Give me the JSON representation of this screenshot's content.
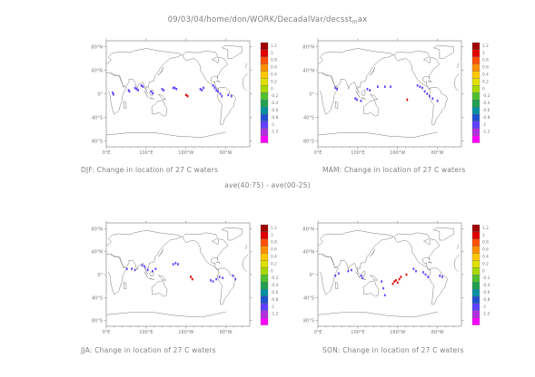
{
  "header": {
    "path": "09/03/04/home/don/WORK/DecadalVar/decsst",
    "path_sub": "m",
    "path_tail": "ax"
  },
  "center_caption": "ave(40:75) - ave(00-25)",
  "axes": {
    "lat_labels": [
      "80°N",
      "40°N",
      "0°",
      "40°S",
      "80°S"
    ],
    "lon_labels": [
      "0°E",
      "100°E",
      "160°W",
      "60°W"
    ]
  },
  "colorbar": {
    "labels": [
      "1.2",
      "1",
      "0.8",
      "0.6",
      "0.4",
      "0.2",
      "0",
      "-0.2",
      "-0.4",
      "-0.6",
      "-0.8",
      "-1",
      "-1.2"
    ],
    "colors": [
      "#a00000",
      "#e00000",
      "#ff5000",
      "#ff9000",
      "#ffc800",
      "#e0e000",
      "#a8d800",
      "#50c030",
      "#20a050",
      "#0090a0",
      "#2050d0",
      "#6040ff",
      "#b030e0",
      "#ff00ff"
    ]
  },
  "panels": [
    {
      "id": "djf",
      "caption": "DJF: Change in location of 27 C waters",
      "cells": [
        {
          "lon": 16,
          "lat": 2,
          "v": -0.8
        },
        {
          "lon": 18,
          "lat": -1,
          "v": -0.8
        },
        {
          "lon": 56,
          "lat": 6,
          "v": -0.9
        },
        {
          "lon": 58,
          "lat": 4,
          "v": -0.9
        },
        {
          "lon": 72,
          "lat": 10,
          "v": -0.9
        },
        {
          "lon": 76,
          "lat": 8,
          "v": -0.9
        },
        {
          "lon": 80,
          "lat": 6,
          "v": -0.9
        },
        {
          "lon": 88,
          "lat": 14,
          "v": -0.9
        },
        {
          "lon": 92,
          "lat": 12,
          "v": -0.9
        },
        {
          "lon": 112,
          "lat": 4,
          "v": -0.9
        },
        {
          "lon": 116,
          "lat": 1,
          "v": -0.9
        },
        {
          "lon": 140,
          "lat": 8,
          "v": -0.9
        },
        {
          "lon": 144,
          "lat": 6,
          "v": -0.9
        },
        {
          "lon": 168,
          "lat": 10,
          "v": -0.9
        },
        {
          "lon": 172,
          "lat": 10,
          "v": -0.9
        },
        {
          "lon": 176,
          "lat": 8,
          "v": -0.9
        },
        {
          "lon": 200,
          "lat": -2,
          "v": 1.1
        },
        {
          "lon": 204,
          "lat": -4,
          "v": 1.1
        },
        {
          "lon": 236,
          "lat": 8,
          "v": -0.9
        },
        {
          "lon": 240,
          "lat": 6,
          "v": -0.9
        },
        {
          "lon": 244,
          "lat": 10,
          "v": -0.9
        },
        {
          "lon": 268,
          "lat": 14,
          "v": -0.9
        },
        {
          "lon": 272,
          "lat": 10,
          "v": -0.9
        },
        {
          "lon": 276,
          "lat": 6,
          "v": -0.9
        },
        {
          "lon": 280,
          "lat": 4,
          "v": -0.9
        },
        {
          "lon": 286,
          "lat": 0,
          "v": -0.9
        },
        {
          "lon": 290,
          "lat": -4,
          "v": -0.9
        },
        {
          "lon": 306,
          "lat": -2,
          "v": -0.9
        },
        {
          "lon": 314,
          "lat": -4,
          "v": -0.9
        }
      ]
    },
    {
      "id": "mam",
      "caption": "MAM: Change in location of 27 C waters",
      "cells": [
        {
          "lon": 44,
          "lat": 10,
          "v": -0.9
        },
        {
          "lon": 48,
          "lat": 8,
          "v": -0.9
        },
        {
          "lon": 94,
          "lat": -8,
          "v": -0.9
        },
        {
          "lon": 98,
          "lat": -10,
          "v": -0.9
        },
        {
          "lon": 108,
          "lat": -12,
          "v": -0.9
        },
        {
          "lon": 124,
          "lat": 8,
          "v": -0.9
        },
        {
          "lon": 130,
          "lat": 6,
          "v": -0.9
        },
        {
          "lon": 150,
          "lat": 12,
          "v": -0.9
        },
        {
          "lon": 168,
          "lat": 12,
          "v": -0.9
        },
        {
          "lon": 182,
          "lat": 12,
          "v": -0.9
        },
        {
          "lon": 224,
          "lat": -10,
          "v": 1.1
        },
        {
          "lon": 250,
          "lat": 14,
          "v": -0.9
        },
        {
          "lon": 256,
          "lat": 12,
          "v": -0.9
        },
        {
          "lon": 262,
          "lat": 10,
          "v": -0.9
        },
        {
          "lon": 268,
          "lat": 4,
          "v": -0.9
        },
        {
          "lon": 274,
          "lat": 0,
          "v": -0.9
        },
        {
          "lon": 280,
          "lat": -4,
          "v": -0.9
        },
        {
          "lon": 288,
          "lat": -8,
          "v": -0.9
        },
        {
          "lon": 300,
          "lat": -12,
          "v": -0.9
        }
      ]
    },
    {
      "id": "jja",
      "caption": "JJA: Change in location of 27 C waters",
      "cells": [
        {
          "lon": 52,
          "lat": 10,
          "v": -0.9
        },
        {
          "lon": 64,
          "lat": 10,
          "v": -0.9
        },
        {
          "lon": 72,
          "lat": 8,
          "v": -0.9
        },
        {
          "lon": 90,
          "lat": 16,
          "v": -0.9
        },
        {
          "lon": 96,
          "lat": 14,
          "v": -0.9
        },
        {
          "lon": 104,
          "lat": 8,
          "v": -0.9
        },
        {
          "lon": 116,
          "lat": 6,
          "v": -0.9
        },
        {
          "lon": 124,
          "lat": 10,
          "v": -0.9
        },
        {
          "lon": 168,
          "lat": 18,
          "v": -0.9
        },
        {
          "lon": 174,
          "lat": 20,
          "v": -0.9
        },
        {
          "lon": 180,
          "lat": 18,
          "v": -0.9
        },
        {
          "lon": 212,
          "lat": -4,
          "v": 1.1
        },
        {
          "lon": 216,
          "lat": -8,
          "v": 1.1
        },
        {
          "lon": 262,
          "lat": -10,
          "v": -0.9
        },
        {
          "lon": 268,
          "lat": -12,
          "v": -0.9
        },
        {
          "lon": 276,
          "lat": -8,
          "v": -0.9
        },
        {
          "lon": 284,
          "lat": -4,
          "v": -0.9
        },
        {
          "lon": 292,
          "lat": -6,
          "v": -0.9
        },
        {
          "lon": 318,
          "lat": -2,
          "v": -0.9
        },
        {
          "lon": 324,
          "lat": -8,
          "v": -0.9
        }
      ]
    },
    {
      "id": "son",
      "caption": "SON: Change in location of 27 C waters",
      "cells": [
        {
          "lon": 44,
          "lat": -2,
          "v": -0.9
        },
        {
          "lon": 52,
          "lat": 2,
          "v": -0.9
        },
        {
          "lon": 76,
          "lat": 6,
          "v": -0.9
        },
        {
          "lon": 84,
          "lat": 8,
          "v": -0.9
        },
        {
          "lon": 108,
          "lat": -2,
          "v": -0.9
        },
        {
          "lon": 112,
          "lat": -6,
          "v": -0.9
        },
        {
          "lon": 160,
          "lat": -12,
          "v": -0.9
        },
        {
          "lon": 164,
          "lat": -24,
          "v": -0.9
        },
        {
          "lon": 168,
          "lat": -36,
          "v": -0.9
        },
        {
          "lon": 188,
          "lat": -16,
          "v": 1.1
        },
        {
          "lon": 192,
          "lat": -12,
          "v": 1.1
        },
        {
          "lon": 196,
          "lat": -10,
          "v": 1.1
        },
        {
          "lon": 200,
          "lat": -14,
          "v": 1.1
        },
        {
          "lon": 204,
          "lat": -8,
          "v": 1.1
        },
        {
          "lon": 208,
          "lat": -4,
          "v": 1.1
        },
        {
          "lon": 222,
          "lat": 0,
          "v": 1.1
        },
        {
          "lon": 240,
          "lat": 10,
          "v": -0.9
        },
        {
          "lon": 246,
          "lat": 6,
          "v": -0.9
        },
        {
          "lon": 264,
          "lat": 4,
          "v": -0.9
        },
        {
          "lon": 270,
          "lat": 0,
          "v": -0.9
        },
        {
          "lon": 276,
          "lat": -4,
          "v": -0.9
        },
        {
          "lon": 306,
          "lat": -2,
          "v": -0.9
        },
        {
          "lon": 312,
          "lat": -4,
          "v": -0.9
        }
      ]
    }
  ]
}
